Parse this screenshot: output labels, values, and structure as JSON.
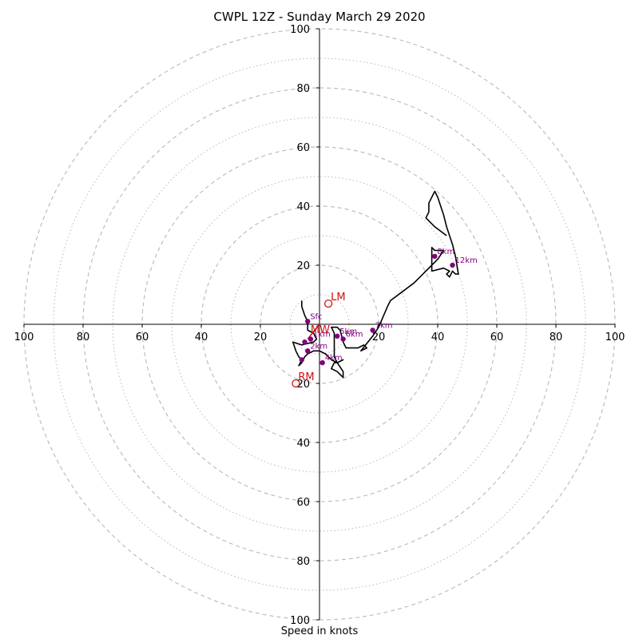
{
  "title": "CWPL 12Z - Sunday March 29 2020",
  "chart_data": {
    "type": "hodograph",
    "title": "CWPL 12Z - Sunday March 29 2020",
    "xlabel": "Speed in knots",
    "ylabel": "",
    "xlim": [
      -100,
      100
    ],
    "ylim": [
      -100,
      100
    ],
    "rings_major": [
      20,
      40,
      60,
      80,
      100
    ],
    "rings_minor": [
      10,
      30,
      50,
      70,
      90
    ],
    "x_ticks": [
      {
        "value": -100,
        "label": "100"
      },
      {
        "value": -80,
        "label": "80"
      },
      {
        "value": -60,
        "label": "60"
      },
      {
        "value": -40,
        "label": "40"
      },
      {
        "value": -20,
        "label": "20"
      },
      {
        "value": 20,
        "label": "20"
      },
      {
        "value": 40,
        "label": "40"
      },
      {
        "value": 60,
        "label": "60"
      },
      {
        "value": 80,
        "label": "80"
      },
      {
        "value": 100,
        "label": "100"
      }
    ],
    "y_ticks": [
      {
        "value": 100,
        "label": "100"
      },
      {
        "value": 80,
        "label": "80"
      },
      {
        "value": 60,
        "label": "60"
      },
      {
        "value": 40,
        "label": "40"
      },
      {
        "value": 20,
        "label": "20"
      },
      {
        "value": -20,
        "label": "20"
      },
      {
        "value": -40,
        "label": "40"
      },
      {
        "value": -60,
        "label": "60"
      },
      {
        "value": -80,
        "label": "80"
      },
      {
        "value": -100,
        "label": "100"
      }
    ],
    "hodograph_path": [
      [
        -6,
        8
      ],
      [
        -6,
        6
      ],
      [
        -5,
        3
      ],
      [
        -4,
        1
      ],
      [
        -4,
        0
      ],
      [
        -4,
        -2
      ],
      [
        -2,
        -3
      ],
      [
        -1,
        -5
      ],
      [
        -2,
        -6
      ],
      [
        -6,
        -7
      ],
      [
        -9,
        -6
      ],
      [
        -8,
        -9
      ],
      [
        -7,
        -11
      ],
      [
        -6,
        -12
      ],
      [
        -7,
        -14
      ],
      [
        -6,
        -13
      ],
      [
        -5,
        -11
      ],
      [
        -4,
        -10
      ],
      [
        -2,
        -9
      ],
      [
        0,
        -9
      ],
      [
        2,
        -10
      ],
      [
        3,
        -11
      ],
      [
        4,
        -12
      ],
      [
        6,
        -13
      ],
      [
        8,
        -12
      ],
      [
        6,
        -13
      ],
      [
        5,
        -13
      ],
      [
        4,
        -15
      ],
      [
        6,
        -16
      ],
      [
        7,
        -17
      ],
      [
        8,
        -18
      ],
      [
        8,
        -16
      ],
      [
        6,
        -13
      ],
      [
        5,
        -11
      ],
      [
        5,
        -9
      ],
      [
        5,
        -6
      ],
      [
        5,
        -3
      ],
      [
        4,
        -1
      ],
      [
        6,
        -1
      ],
      [
        7,
        -2
      ],
      [
        8,
        -6
      ],
      [
        9,
        -8
      ],
      [
        13,
        -8
      ],
      [
        15,
        -7
      ],
      [
        16,
        -8
      ],
      [
        14,
        -9
      ],
      [
        18,
        -4
      ],
      [
        20,
        -1
      ],
      [
        23,
        6
      ],
      [
        24,
        8
      ],
      [
        28,
        11
      ],
      [
        32,
        14
      ],
      [
        35,
        17
      ],
      [
        38,
        20
      ],
      [
        40,
        22
      ],
      [
        42,
        25
      ],
      [
        39,
        25
      ],
      [
        38,
        26
      ],
      [
        38,
        18
      ],
      [
        42,
        19
      ],
      [
        44,
        18
      ],
      [
        43,
        17
      ],
      [
        44,
        16
      ],
      [
        45,
        18
      ],
      [
        46,
        17
      ],
      [
        47,
        17
      ],
      [
        46,
        23
      ],
      [
        45,
        27
      ],
      [
        43,
        33
      ],
      [
        42,
        37
      ],
      [
        41,
        40
      ],
      [
        40,
        43
      ],
      [
        39,
        45
      ],
      [
        38,
        43
      ],
      [
        37,
        41
      ],
      [
        37,
        38
      ],
      [
        36,
        36
      ],
      [
        39,
        33
      ],
      [
        43,
        30
      ]
    ],
    "height_markers": [
      {
        "label": "Sfc",
        "u": -4,
        "v": 1
      },
      {
        "label": "",
        "u": -5,
        "v": -6
      },
      {
        "label": "1km",
        "u": -3,
        "v": -5
      },
      {
        "label": "2km",
        "u": -4,
        "v": -9
      },
      {
        "label": "",
        "u": -6,
        "v": -12
      },
      {
        "label": "4km",
        "u": 1,
        "v": -13
      },
      {
        "label": "5km",
        "u": 6,
        "v": -4
      },
      {
        "label": "6km",
        "u": 8,
        "v": -5
      },
      {
        "label": "7km",
        "u": 18,
        "v": -2
      },
      {
        "label": "8km",
        "u": 39,
        "v": 23
      },
      {
        "label": "12km",
        "u": 45,
        "v": 20
      }
    ],
    "storm_motion": [
      {
        "label": "LM",
        "u": 3,
        "v": 7
      },
      {
        "label": "RM",
        "u": -8,
        "v": -20
      }
    ],
    "mean_wind": {
      "label": "MW",
      "u": -3,
      "v": -3
    },
    "mean_wind_vector": {
      "from": [
        0,
        0
      ],
      "to": [
        -4,
        -5
      ]
    },
    "colors": {
      "path": "#000000",
      "marker": "#800080",
      "storm": "#cc1111",
      "grid": "#b8b8b8",
      "axis": "#000000"
    }
  }
}
